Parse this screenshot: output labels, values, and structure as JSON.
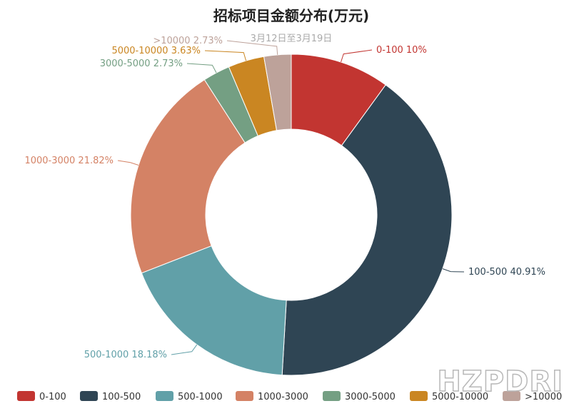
{
  "chart_data": {
    "type": "pie",
    "variant": "donut",
    "title": "招标项目金额分布(万元)",
    "subtitle": "3月12日至3月19日",
    "slices": [
      {
        "name": "0-100",
        "value": 10,
        "label": "0-100 10%",
        "color": "#c23531"
      },
      {
        "name": "100-500",
        "value": 40.91,
        "label": "100-500 40.91%",
        "color": "#2f4554"
      },
      {
        "name": "500-1000",
        "value": 18.18,
        "label": "500-1000 18.18%",
        "color": "#61a0a8"
      },
      {
        "name": "1000-3000",
        "value": 21.82,
        "label": "1000-3000 21.82%",
        "color": "#d48265"
      },
      {
        "name": "3000-5000",
        "value": 2.73,
        "label": "3000-5000 2.73%",
        "color": "#749f83"
      },
      {
        "name": "5000-10000",
        "value": 3.63,
        "label": "5000-10000 3.63%",
        "color": "#ca8622"
      },
      {
        "name": ">10000",
        "value": 2.73,
        "label": ">10000 2.73%",
        "color": "#bda29a"
      }
    ],
    "legend_position": "bottom"
  },
  "watermark": "HZPDRI"
}
